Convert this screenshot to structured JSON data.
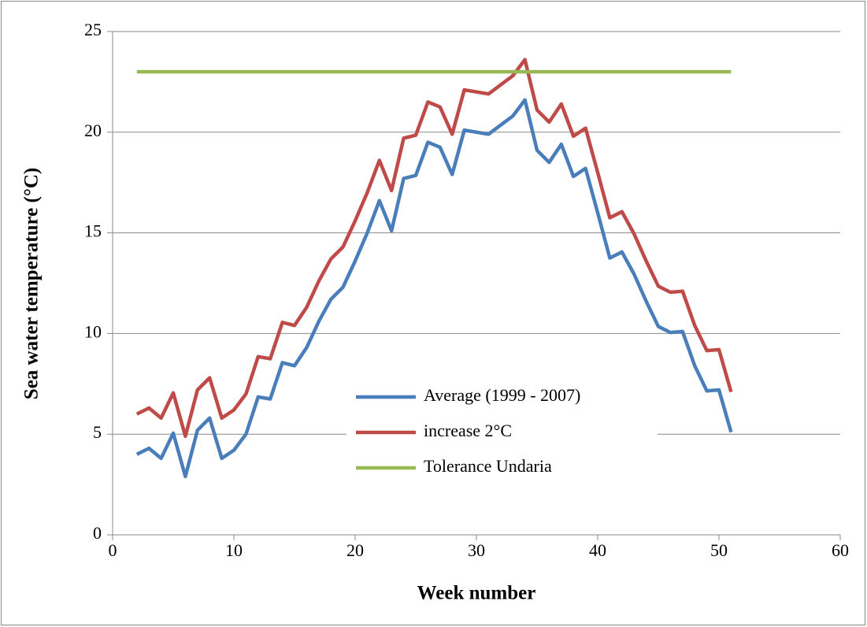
{
  "chart_data": {
    "type": "line",
    "x_label": "Week number",
    "y_label": "Sea water temperature (°C)",
    "x": [
      2,
      3,
      4,
      5,
      6,
      7,
      8,
      9,
      10,
      11,
      12,
      13,
      14,
      15,
      16,
      17,
      18,
      19,
      20,
      21,
      22,
      23,
      24,
      25,
      26,
      27,
      28,
      29,
      30,
      31,
      32,
      33,
      34,
      35,
      36,
      37,
      38,
      39,
      40,
      41,
      42,
      43,
      44,
      45,
      46,
      47,
      48,
      49,
      50,
      51
    ],
    "series": [
      {
        "name": "Average (1999 - 2007)",
        "color": "#4a7ebb",
        "values": [
          4.0,
          4.3,
          3.8,
          5.05,
          2.9,
          5.2,
          5.8,
          3.8,
          4.2,
          5.0,
          6.85,
          6.75,
          8.55,
          8.4,
          9.3,
          10.6,
          11.7,
          12.3,
          13.6,
          15.0,
          16.6,
          15.1,
          17.7,
          17.85,
          19.5,
          19.25,
          17.9,
          20.1,
          20.0,
          19.9,
          20.35,
          20.8,
          21.6,
          19.1,
          18.5,
          19.4,
          17.8,
          18.2,
          16.0,
          13.75,
          14.05,
          12.95,
          11.6,
          10.35,
          10.05,
          10.1,
          8.4,
          7.15,
          7.2,
          5.1
        ]
      },
      {
        "name": "increase 2°C",
        "color": "#be4b48",
        "values": [
          6.0,
          6.3,
          5.8,
          7.05,
          4.9,
          7.2,
          7.8,
          5.8,
          6.2,
          7.0,
          8.85,
          8.75,
          10.55,
          10.4,
          11.3,
          12.6,
          13.7,
          14.3,
          15.6,
          17.0,
          18.6,
          17.1,
          19.7,
          19.85,
          21.5,
          21.25,
          19.9,
          22.1,
          22.0,
          21.9,
          22.35,
          22.8,
          23.6,
          21.1,
          20.5,
          21.4,
          19.8,
          20.2,
          18.0,
          15.75,
          16.05,
          14.95,
          13.6,
          12.35,
          12.05,
          12.1,
          10.4,
          9.15,
          9.2,
          7.1
        ]
      },
      {
        "name": "Tolerance Undaria",
        "color": "#98b954",
        "values": [
          23,
          23,
          23,
          23,
          23,
          23,
          23,
          23,
          23,
          23,
          23,
          23,
          23,
          23,
          23,
          23,
          23,
          23,
          23,
          23,
          23,
          23,
          23,
          23,
          23,
          23,
          23,
          23,
          23,
          23,
          23,
          23,
          23,
          23,
          23,
          23,
          23,
          23,
          23,
          23,
          23,
          23,
          23,
          23,
          23,
          23,
          23,
          23,
          23,
          23
        ]
      }
    ],
    "xlim": [
      0,
      60
    ],
    "xticks": [
      0,
      10,
      20,
      30,
      40,
      50,
      60
    ],
    "ylim": [
      0,
      25
    ],
    "yticks": [
      0,
      5,
      10,
      15,
      20,
      25
    ],
    "grid": true,
    "legend": "lower center"
  }
}
